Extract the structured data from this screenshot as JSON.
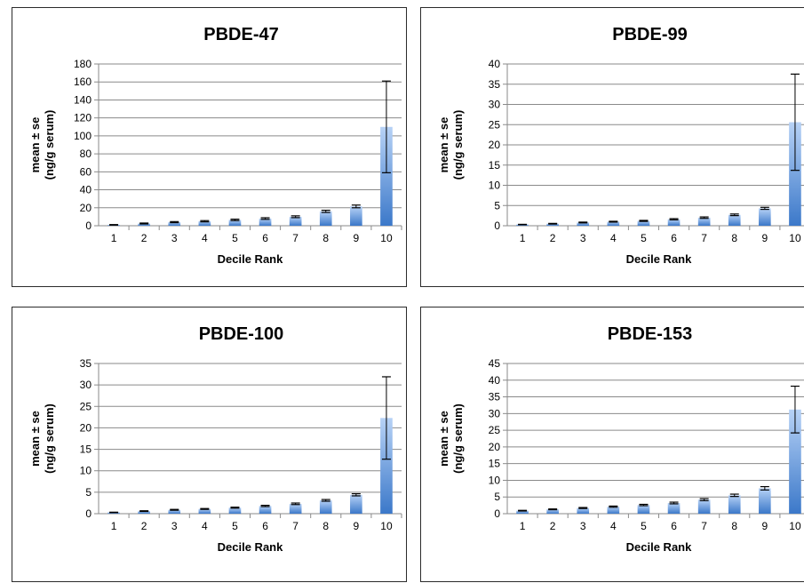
{
  "colors": {
    "bar_top": "#b7d2f6",
    "bar_bottom": "#3b78c9",
    "grid": "#8a8a8a",
    "axis": "#8a8a8a",
    "border": "#2b2b2b"
  },
  "chart_data": [
    {
      "type": "bar",
      "title": "PBDE-47",
      "xlabel": "Decile Rank",
      "ylabel": [
        "mean ± se",
        "(ng/g serum)"
      ],
      "ylim": [
        0,
        180
      ],
      "ystep": 20,
      "grid": true,
      "categories": [
        "1",
        "2",
        "3",
        "4",
        "5",
        "6",
        "7",
        "8",
        "9",
        "10"
      ],
      "values": [
        1,
        2.5,
        4,
        5,
        6.5,
        8,
        10,
        16,
        21.5,
        110
      ],
      "errors": [
        0.3,
        0.5,
        0.6,
        0.7,
        0.8,
        0.9,
        1.0,
        1.2,
        1.5,
        51
      ]
    },
    {
      "type": "bar",
      "title": "PBDE-99",
      "xlabel": "Decile Rank",
      "ylabel": [
        "mean ± se",
        "(ng/g serum)"
      ],
      "ylim": [
        0,
        40
      ],
      "ystep": 5,
      "grid": true,
      "categories": [
        "1",
        "2",
        "3",
        "4",
        "5",
        "6",
        "7",
        "8",
        "9",
        "10"
      ],
      "values": [
        0.3,
        0.5,
        0.8,
        1.0,
        1.2,
        1.6,
        2.0,
        2.7,
        4.3,
        25.6
      ],
      "errors": [
        0.05,
        0.08,
        0.1,
        0.1,
        0.12,
        0.15,
        0.18,
        0.2,
        0.25,
        11.9
      ]
    },
    {
      "type": "bar",
      "title": "PBDE-100",
      "xlabel": "Decile Rank",
      "ylabel": [
        "mean ± se",
        "(ng/g serum)"
      ],
      "ylim": [
        0,
        35
      ],
      "ystep": 5,
      "grid": true,
      "categories": [
        "1",
        "2",
        "3",
        "4",
        "5",
        "6",
        "7",
        "8",
        "9",
        "10"
      ],
      "values": [
        0.3,
        0.6,
        0.9,
        1.1,
        1.4,
        1.8,
        2.3,
        3.1,
        4.4,
        22.3
      ],
      "errors": [
        0.05,
        0.08,
        0.1,
        0.1,
        0.12,
        0.15,
        0.18,
        0.2,
        0.25,
        9.6
      ]
    },
    {
      "type": "bar",
      "title": "PBDE-153",
      "xlabel": "Decile Rank",
      "ylabel": [
        "mean ± se",
        "(ng/g serum)"
      ],
      "ylim": [
        0,
        45
      ],
      "ystep": 5,
      "grid": true,
      "categories": [
        "1",
        "2",
        "3",
        "4",
        "5",
        "6",
        "7",
        "8",
        "9",
        "10"
      ],
      "values": [
        0.9,
        1.3,
        1.7,
        2.1,
        2.6,
        3.2,
        4.2,
        5.5,
        7.6,
        31.2
      ],
      "errors": [
        0.1,
        0.12,
        0.15,
        0.18,
        0.2,
        0.25,
        0.3,
        0.35,
        0.5,
        7.0
      ]
    }
  ]
}
